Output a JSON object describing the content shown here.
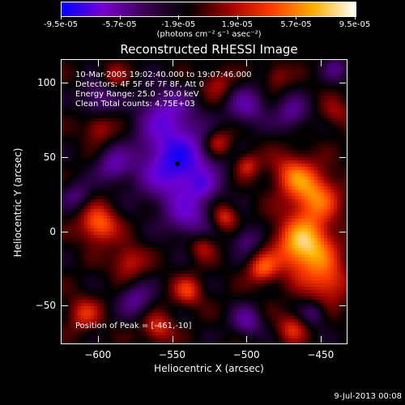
{
  "colorbar": {
    "labels": [
      "-9.5e-05",
      "-5.7e-05",
      "-1.9e-05",
      "1.9e-05",
      "5.7e-05",
      "9.5e-05"
    ],
    "range": [
      -9.5e-05,
      9.5e-05
    ],
    "unit": "(photons cm⁻² s⁻¹ asec⁻²)",
    "colors": [
      "#0000ff",
      "#7a00d0",
      "#3a0050",
      "#000000",
      "#a00000",
      "#ff3a00",
      "#ffb000",
      "#ffffff"
    ]
  },
  "chart_data": {
    "type": "heatmap",
    "title": "Reconstructed RHESSI Image",
    "xlabel": "Heliocentric X (arcsec)",
    "ylabel": "Heliocentric Y (arcsec)",
    "xlim": [
      -625,
      -433
    ],
    "ylim": [
      -75,
      116
    ],
    "xticks": [
      -600,
      -550,
      -500,
      -450
    ],
    "yticks": [
      -50,
      0,
      50,
      100
    ],
    "xtick_labels": [
      "−600",
      "−550",
      "−500",
      "−450"
    ],
    "ytick_labels": [
      "−50",
      "0",
      "50",
      "100"
    ],
    "peak": {
      "x": -461,
      "y": -10
    },
    "min_marker": {
      "x": -547,
      "y": 46
    }
  },
  "info_lines": [
    "10-Mar-2005 19:02:40.000 to 19:07:46.000",
    "Detectors: 4F 5F 6F 7F 8F, Att 0",
    "Energy Range: 25.0 - 50.0 keV",
    "Clean     Total counts: 4.75E+03"
  ],
  "peak_label": "Position of Peak = [-461,-10]",
  "footer_date": "9-Jul-2013 00:08"
}
